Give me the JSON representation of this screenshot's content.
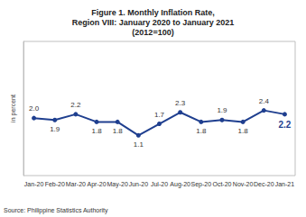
{
  "chart_data": {
    "type": "line",
    "title": "Figure 1. Monthly Inflation Rate,\nRegion VIII: January 2020 to January 2021\n(2012=100)",
    "y_label": "in percent",
    "source": "Source: Philippine Statistics Authority",
    "categories": [
      "Jan-20",
      "Feb-20",
      "Mar-20",
      "Apr-20",
      "May-20",
      "Jun-20",
      "Jul-20",
      "Aug-20",
      "Sep-20",
      "Oct-20",
      "Nov-20",
      "Dec-20",
      "Jan-21"
    ],
    "values": [
      2.0,
      1.9,
      2.2,
      1.8,
      1.8,
      1.1,
      1.7,
      2.3,
      1.8,
      1.9,
      1.8,
      2.4,
      2.2
    ],
    "value_labels": [
      "2.0",
      "1.9",
      "2.2",
      "1.8",
      "1.8",
      "1.1",
      "1.7",
      "2.3",
      "1.8",
      "1.9",
      "1.8",
      "2.4",
      "2.2"
    ],
    "color": "#1f3f8f",
    "marker": "circle",
    "ylim": [
      -1,
      6
    ],
    "grid": false,
    "data_labels": true,
    "tick_labels": "x"
  }
}
